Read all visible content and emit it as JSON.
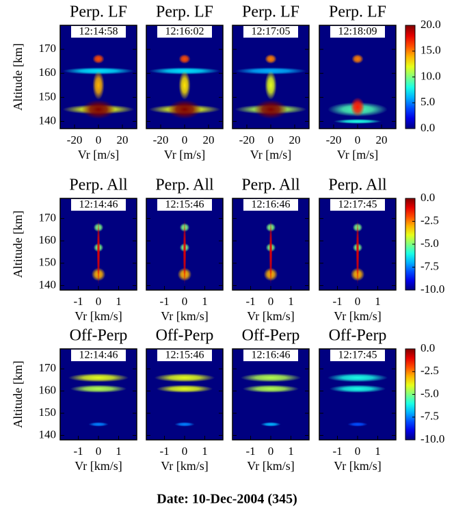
{
  "caption": "Date: 10-Dec-2004 (345)",
  "chart_data": [
    {
      "type": "heatmap",
      "colormap": "jet",
      "title": "Perp. LF",
      "time": "12:14:58",
      "xlabel": "Vr [m/s]",
      "ylabel": "Altitude [km]",
      "xlim": [
        -32,
        32
      ],
      "xticks": [
        -20,
        0,
        20
      ],
      "ylim": [
        137,
        180
      ],
      "yticks": [
        140,
        150,
        160,
        170
      ],
      "clim": [
        0,
        20
      ],
      "features": [
        {
          "x": 0,
          "y": 145,
          "x_width": 30,
          "y_width": 2,
          "value": 12
        },
        {
          "x": 0,
          "y": 161,
          "x_width": 30,
          "y_width": 1.5,
          "value": 7
        },
        {
          "x": 0,
          "y": 155,
          "x_width": 5,
          "y_width": 6,
          "value": 14
        },
        {
          "x": 0,
          "y": 145,
          "x_width": 14,
          "y_width": 4,
          "value": 20
        },
        {
          "x": 0,
          "y": 166,
          "x_width": 5,
          "y_width": 2,
          "value": 16
        }
      ]
    },
    {
      "type": "heatmap",
      "colormap": "jet",
      "title": "Perp. LF",
      "time": "12:16:02",
      "xlabel": "Vr [m/s]",
      "xlim": [
        -32,
        32
      ],
      "xticks": [
        -20,
        0,
        20
      ],
      "ylim": [
        137,
        180
      ],
      "yticks": [
        140,
        150,
        160,
        170
      ],
      "clim": [
        0,
        20
      ],
      "features": [
        {
          "x": 0,
          "y": 145,
          "x_width": 30,
          "y_width": 2,
          "value": 12
        },
        {
          "x": 0,
          "y": 161,
          "x_width": 30,
          "y_width": 1.5,
          "value": 7
        },
        {
          "x": 0,
          "y": 155,
          "x_width": 5,
          "y_width": 6,
          "value": 13
        },
        {
          "x": 0,
          "y": 145,
          "x_width": 14,
          "y_width": 4,
          "value": 20
        },
        {
          "x": 0,
          "y": 166,
          "x_width": 5,
          "y_width": 2,
          "value": 16
        }
      ]
    },
    {
      "type": "heatmap",
      "colormap": "jet",
      "title": "Perp. LF",
      "time": "12:17:05",
      "xlabel": "Vr [m/s]",
      "xlim": [
        -32,
        32
      ],
      "xticks": [
        -20,
        0,
        20
      ],
      "ylim": [
        137,
        180
      ],
      "yticks": [
        140,
        150,
        160,
        170
      ],
      "clim": [
        0,
        20
      ],
      "features": [
        {
          "x": 0,
          "y": 145,
          "x_width": 30,
          "y_width": 2,
          "value": 11
        },
        {
          "x": 0,
          "y": 161,
          "x_width": 30,
          "y_width": 1.5,
          "value": 6
        },
        {
          "x": 0,
          "y": 155,
          "x_width": 5,
          "y_width": 6,
          "value": 12
        },
        {
          "x": 0,
          "y": 145,
          "x_width": 14,
          "y_width": 4,
          "value": 20
        },
        {
          "x": 0,
          "y": 166,
          "x_width": 5,
          "y_width": 2,
          "value": 15
        }
      ]
    },
    {
      "type": "heatmap",
      "colormap": "jet",
      "title": "Perp. LF",
      "time": "12:18:09",
      "xlabel": "Vr [m/s]",
      "xlim": [
        -32,
        32
      ],
      "xticks": [
        -20,
        0,
        20
      ],
      "ylim": [
        137,
        180
      ],
      "yticks": [
        140,
        150,
        160,
        170
      ],
      "clim": [
        0,
        20
      ],
      "cticks": [
        {
          "value": 0,
          "label": "0.0"
        },
        {
          "value": 5,
          "label": "5.0"
        },
        {
          "value": 10,
          "label": "10.0"
        },
        {
          "value": 15,
          "label": "15.0"
        },
        {
          "value": 20,
          "label": "20.0"
        }
      ],
      "features": [
        {
          "x": 0,
          "y": 145,
          "x_width": 25,
          "y_width": 3,
          "value": 9
        },
        {
          "x": 0,
          "y": 140,
          "x_width": 20,
          "y_width": 1,
          "value": 8
        },
        {
          "x": 0,
          "y": 146,
          "x_width": 6,
          "y_width": 4,
          "value": 17
        },
        {
          "x": 0,
          "y": 166,
          "x_width": 5,
          "y_width": 2,
          "value": 15
        }
      ]
    },
    {
      "type": "heatmap",
      "colormap": "jet",
      "title": "Perp. All",
      "time": "12:14:46",
      "xlabel": "Vr [km/s]",
      "ylabel": "Altitude [km]",
      "xlim": [
        -1.9,
        1.9
      ],
      "xticks": [
        -1,
        0,
        1
      ],
      "ylim": [
        138,
        179
      ],
      "yticks": [
        140,
        150,
        160,
        170
      ],
      "clim": [
        -10,
        0
      ],
      "features": [
        {
          "x": 0,
          "y": 145,
          "x_width": 0.35,
          "y_width": 3,
          "value": -3
        },
        {
          "x": 0,
          "y": 157,
          "x_width": 0.25,
          "y_width": 2,
          "value": -5
        },
        {
          "x": 0,
          "y": 166,
          "x_width": 0.25,
          "y_width": 2,
          "value": -5
        },
        {
          "x": 0,
          "y": 155,
          "x_width": 0.08,
          "y_width": 15,
          "value": -1
        }
      ]
    },
    {
      "type": "heatmap",
      "colormap": "jet",
      "title": "Perp. All",
      "time": "12:15:46",
      "xlabel": "Vr [km/s]",
      "xlim": [
        -1.9,
        1.9
      ],
      "xticks": [
        -1,
        0,
        1
      ],
      "ylim": [
        138,
        179
      ],
      "yticks": [
        140,
        150,
        160,
        170
      ],
      "clim": [
        -10,
        0
      ],
      "features": [
        {
          "x": 0,
          "y": 145,
          "x_width": 0.35,
          "y_width": 3,
          "value": -3
        },
        {
          "x": 0,
          "y": 157,
          "x_width": 0.25,
          "y_width": 2,
          "value": -5
        },
        {
          "x": 0,
          "y": 166,
          "x_width": 0.25,
          "y_width": 2,
          "value": -5
        },
        {
          "x": 0,
          "y": 155,
          "x_width": 0.08,
          "y_width": 15,
          "value": -1
        }
      ]
    },
    {
      "type": "heatmap",
      "colormap": "jet",
      "title": "Perp. All",
      "time": "12:16:46",
      "xlabel": "Vr [km/s]",
      "xlim": [
        -1.9,
        1.9
      ],
      "xticks": [
        -1,
        0,
        1
      ],
      "ylim": [
        138,
        179
      ],
      "yticks": [
        140,
        150,
        160,
        170
      ],
      "clim": [
        -10,
        0
      ],
      "features": [
        {
          "x": 0,
          "y": 145,
          "x_width": 0.35,
          "y_width": 3,
          "value": -3
        },
        {
          "x": 0,
          "y": 157,
          "x_width": 0.25,
          "y_width": 2,
          "value": -5
        },
        {
          "x": 0,
          "y": 166,
          "x_width": 0.25,
          "y_width": 2,
          "value": -5
        },
        {
          "x": 0,
          "y": 155,
          "x_width": 0.08,
          "y_width": 15,
          "value": -1
        }
      ]
    },
    {
      "type": "heatmap",
      "colormap": "jet",
      "title": "Perp. All",
      "time": "12:17:45",
      "xlabel": "Vr [km/s]",
      "xlim": [
        -1.9,
        1.9
      ],
      "xticks": [
        -1,
        0,
        1
      ],
      "ylim": [
        138,
        179
      ],
      "yticks": [
        140,
        150,
        160,
        170
      ],
      "clim": [
        -10,
        0
      ],
      "cticks": [
        {
          "value": 0,
          "label": "0.0"
        },
        {
          "value": -2.5,
          "label": "-2.5"
        },
        {
          "value": -5,
          "label": "-5.0"
        },
        {
          "value": -7.5,
          "label": "-7.5"
        },
        {
          "value": -10,
          "label": "-10.0"
        }
      ],
      "features": [
        {
          "x": 0,
          "y": 145,
          "x_width": 0.35,
          "y_width": 3,
          "value": -3
        },
        {
          "x": 0,
          "y": 157,
          "x_width": 0.25,
          "y_width": 2,
          "value": -5
        },
        {
          "x": 0,
          "y": 166,
          "x_width": 0.25,
          "y_width": 2,
          "value": -5
        },
        {
          "x": 0,
          "y": 155,
          "x_width": 0.08,
          "y_width": 15,
          "value": -1
        }
      ]
    },
    {
      "type": "heatmap",
      "colormap": "jet",
      "title": "Off-Perp",
      "time": "12:14:46",
      "xlabel": "Vr [km/s]",
      "ylabel": "Altitude [km]",
      "xlim": [
        -1.9,
        1.9
      ],
      "xticks": [
        -1,
        0,
        1
      ],
      "ylim": [
        138,
        179
      ],
      "yticks": [
        140,
        150,
        160,
        170
      ],
      "clim": [
        -10,
        0
      ],
      "features": [
        {
          "x": 0,
          "y": 145,
          "x_width": 0.5,
          "y_width": 1,
          "value": -7.5
        },
        {
          "x": 0,
          "y": 161,
          "x_width": 1.4,
          "y_width": 1.8,
          "value": -4.5
        },
        {
          "x": 0,
          "y": 166,
          "x_width": 1.5,
          "y_width": 2,
          "value": -4
        }
      ]
    },
    {
      "type": "heatmap",
      "colormap": "jet",
      "title": "Off-Perp",
      "time": "12:15:46",
      "xlabel": "Vr [km/s]",
      "xlim": [
        -1.9,
        1.9
      ],
      "xticks": [
        -1,
        0,
        1
      ],
      "ylim": [
        138,
        179
      ],
      "yticks": [
        140,
        150,
        160,
        170
      ],
      "clim": [
        -10,
        0
      ],
      "features": [
        {
          "x": 0,
          "y": 145,
          "x_width": 0.5,
          "y_width": 1,
          "value": -7.5
        },
        {
          "x": 0,
          "y": 161,
          "x_width": 1.4,
          "y_width": 1.8,
          "value": -4
        },
        {
          "x": 0,
          "y": 166,
          "x_width": 1.5,
          "y_width": 2,
          "value": -4
        }
      ]
    },
    {
      "type": "heatmap",
      "colormap": "jet",
      "title": "Off-Perp",
      "time": "12:16:46",
      "xlabel": "Vr [km/s]",
      "xlim": [
        -1.9,
        1.9
      ],
      "xticks": [
        -1,
        0,
        1
      ],
      "ylim": [
        138,
        179
      ],
      "yticks": [
        140,
        150,
        160,
        170
      ],
      "clim": [
        -10,
        0
      ],
      "features": [
        {
          "x": 0,
          "y": 145,
          "x_width": 0.5,
          "y_width": 1,
          "value": -7
        },
        {
          "x": 0,
          "y": 161,
          "x_width": 1.4,
          "y_width": 1.8,
          "value": -4.5
        },
        {
          "x": 0,
          "y": 166,
          "x_width": 1.5,
          "y_width": 2,
          "value": -4.5
        }
      ]
    },
    {
      "type": "heatmap",
      "colormap": "jet",
      "title": "Off-Perp",
      "time": "12:17:45",
      "xlabel": "Vr [km/s]",
      "xlim": [
        -1.9,
        1.9
      ],
      "xticks": [
        -1,
        0,
        1
      ],
      "ylim": [
        138,
        179
      ],
      "yticks": [
        140,
        150,
        160,
        170
      ],
      "clim": [
        -10,
        0
      ],
      "cticks": [
        {
          "value": 0,
          "label": "0.0"
        },
        {
          "value": -2.5,
          "label": "-2.5"
        },
        {
          "value": -5,
          "label": "-5.0"
        },
        {
          "value": -7.5,
          "label": "-7.5"
        },
        {
          "value": -10,
          "label": "-10.0"
        }
      ],
      "features": [
        {
          "x": 0,
          "y": 145,
          "x_width": 0.5,
          "y_width": 1,
          "value": -8
        },
        {
          "x": 0,
          "y": 161,
          "x_width": 1.4,
          "y_width": 1.8,
          "value": -6
        },
        {
          "x": 0,
          "y": 166,
          "x_width": 1.5,
          "y_width": 2,
          "value": -6
        }
      ]
    }
  ]
}
